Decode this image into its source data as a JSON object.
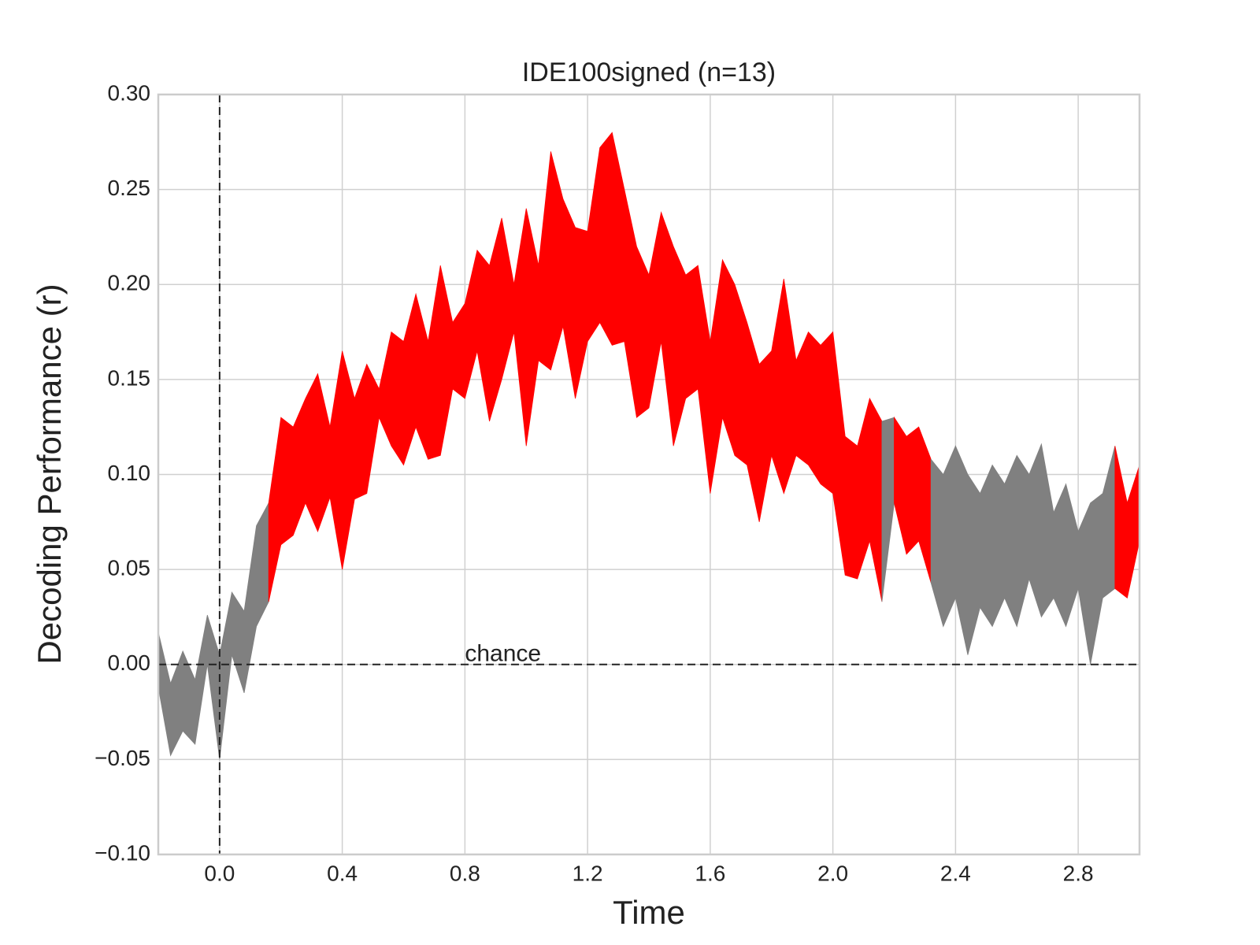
{
  "chart_data": {
    "type": "band",
    "title": "IDE100signed (n=13)",
    "xlabel": "Time",
    "ylabel": "Decoding Performance (r)",
    "annotations": [
      {
        "text": "chance",
        "x": 0.8,
        "y": 0
      }
    ],
    "vline": 0,
    "hline": 0,
    "sig_color": "#ff0000",
    "nonsig_color": "#808080",
    "x": [
      -0.2,
      -0.16,
      -0.12,
      -0.08,
      -0.04,
      0,
      0.04,
      0.08,
      0.12,
      0.16,
      0.2,
      0.24,
      0.28,
      0.32,
      0.36,
      0.4,
      0.44,
      0.48,
      0.52,
      0.56,
      0.6,
      0.64,
      0.68,
      0.72,
      0.76,
      0.8,
      0.84,
      0.88,
      0.92,
      0.96,
      1,
      1.04,
      1.08,
      1.12,
      1.16,
      1.2,
      1.24,
      1.28,
      1.32,
      1.36,
      1.4,
      1.44,
      1.48,
      1.52,
      1.56,
      1.6,
      1.64,
      1.68,
      1.72,
      1.76,
      1.8,
      1.84,
      1.88,
      1.92,
      1.96,
      2,
      2.04,
      2.08,
      2.12,
      2.16,
      2.2,
      2.24,
      2.28,
      2.32,
      2.36,
      2.4,
      2.44,
      2.48,
      2.52,
      2.56,
      2.6,
      2.64,
      2.68,
      2.72,
      2.76,
      2.8,
      2.84,
      2.88,
      2.92,
      2.96,
      3
    ],
    "upper": [
      0.017,
      -0.01,
      0.007,
      -0.008,
      0.026,
      0.005,
      0.038,
      0.028,
      0.073,
      0.085,
      0.13,
      0.125,
      0.14,
      0.153,
      0.125,
      0.165,
      0.14,
      0.158,
      0.145,
      0.175,
      0.17,
      0.195,
      0.17,
      0.21,
      0.18,
      0.19,
      0.218,
      0.21,
      0.235,
      0.2,
      0.24,
      0.21,
      0.27,
      0.245,
      0.23,
      0.228,
      0.272,
      0.28,
      0.25,
      0.22,
      0.205,
      0.238,
      0.22,
      0.205,
      0.21,
      0.17,
      0.213,
      0.2,
      0.18,
      0.158,
      0.165,
      0.203,
      0.16,
      0.175,
      0.168,
      0.175,
      0.12,
      0.115,
      0.14,
      0.128,
      0.13,
      0.12,
      0.125,
      0.108,
      0.1,
      0.115,
      0.1,
      0.09,
      0.105,
      0.095,
      0.11,
      0.1,
      0.116,
      0.08,
      0.095,
      0.07,
      0.085,
      0.09,
      0.115,
      0.085,
      0.105
    ],
    "lower": [
      -0.012,
      -0.048,
      -0.035,
      -0.042,
      0,
      -0.05,
      0.005,
      -0.015,
      0.02,
      0.033,
      0.063,
      0.068,
      0.085,
      0.07,
      0.088,
      0.05,
      0.087,
      0.09,
      0.13,
      0.115,
      0.105,
      0.125,
      0.108,
      0.11,
      0.145,
      0.14,
      0.165,
      0.128,
      0.15,
      0.175,
      0.115,
      0.16,
      0.155,
      0.178,
      0.14,
      0.17,
      0.18,
      0.168,
      0.17,
      0.13,
      0.135,
      0.17,
      0.115,
      0.14,
      0.145,
      0.09,
      0.13,
      0.11,
      0.105,
      0.075,
      0.11,
      0.09,
      0.11,
      0.105,
      0.095,
      0.09,
      0.047,
      0.045,
      0.065,
      0.033,
      0.085,
      0.058,
      0.065,
      0.043,
      0.02,
      0.035,
      0.005,
      0.03,
      0.02,
      0.035,
      0.02,
      0.045,
      0.025,
      0.035,
      0.02,
      0.04,
      0,
      0.035,
      0.04,
      0.035,
      0.065
    ],
    "significant": [
      false,
      false,
      false,
      false,
      false,
      false,
      false,
      false,
      false,
      true,
      true,
      true,
      true,
      true,
      true,
      true,
      true,
      true,
      true,
      true,
      true,
      true,
      true,
      true,
      true,
      true,
      true,
      true,
      true,
      true,
      true,
      true,
      true,
      true,
      true,
      true,
      true,
      true,
      true,
      true,
      true,
      true,
      true,
      true,
      true,
      true,
      true,
      true,
      true,
      true,
      true,
      true,
      true,
      true,
      true,
      true,
      true,
      true,
      true,
      false,
      true,
      true,
      true,
      false,
      false,
      false,
      false,
      false,
      false,
      false,
      false,
      false,
      false,
      false,
      false,
      false,
      false,
      false,
      true,
      true,
      true
    ],
    "xlim": [
      -0.2,
      3.0
    ],
    "ylim": [
      -0.1,
      0.3
    ],
    "xticks": [
      {
        "value": 0,
        "label": "0.0"
      },
      0.4,
      0.8,
      1.2,
      1.6,
      {
        "value": 2,
        "label": "2.0"
      },
      2.4,
      2.8
    ],
    "yticks": [
      {
        "value": -0.1,
        "label": "−0.10"
      },
      {
        "value": -0.05,
        "label": "−0.05"
      },
      {
        "value": 0,
        "label": "0.00"
      },
      {
        "value": 0.05,
        "label": "0.05"
      },
      {
        "value": 0.1,
        "label": "0.10"
      },
      {
        "value": 0.15,
        "label": "0.15"
      },
      {
        "value": 0.2,
        "label": "0.20"
      },
      {
        "value": 0.25,
        "label": "0.25"
      },
      {
        "value": 0.3,
        "label": "0.30"
      }
    ],
    "grid": true
  }
}
